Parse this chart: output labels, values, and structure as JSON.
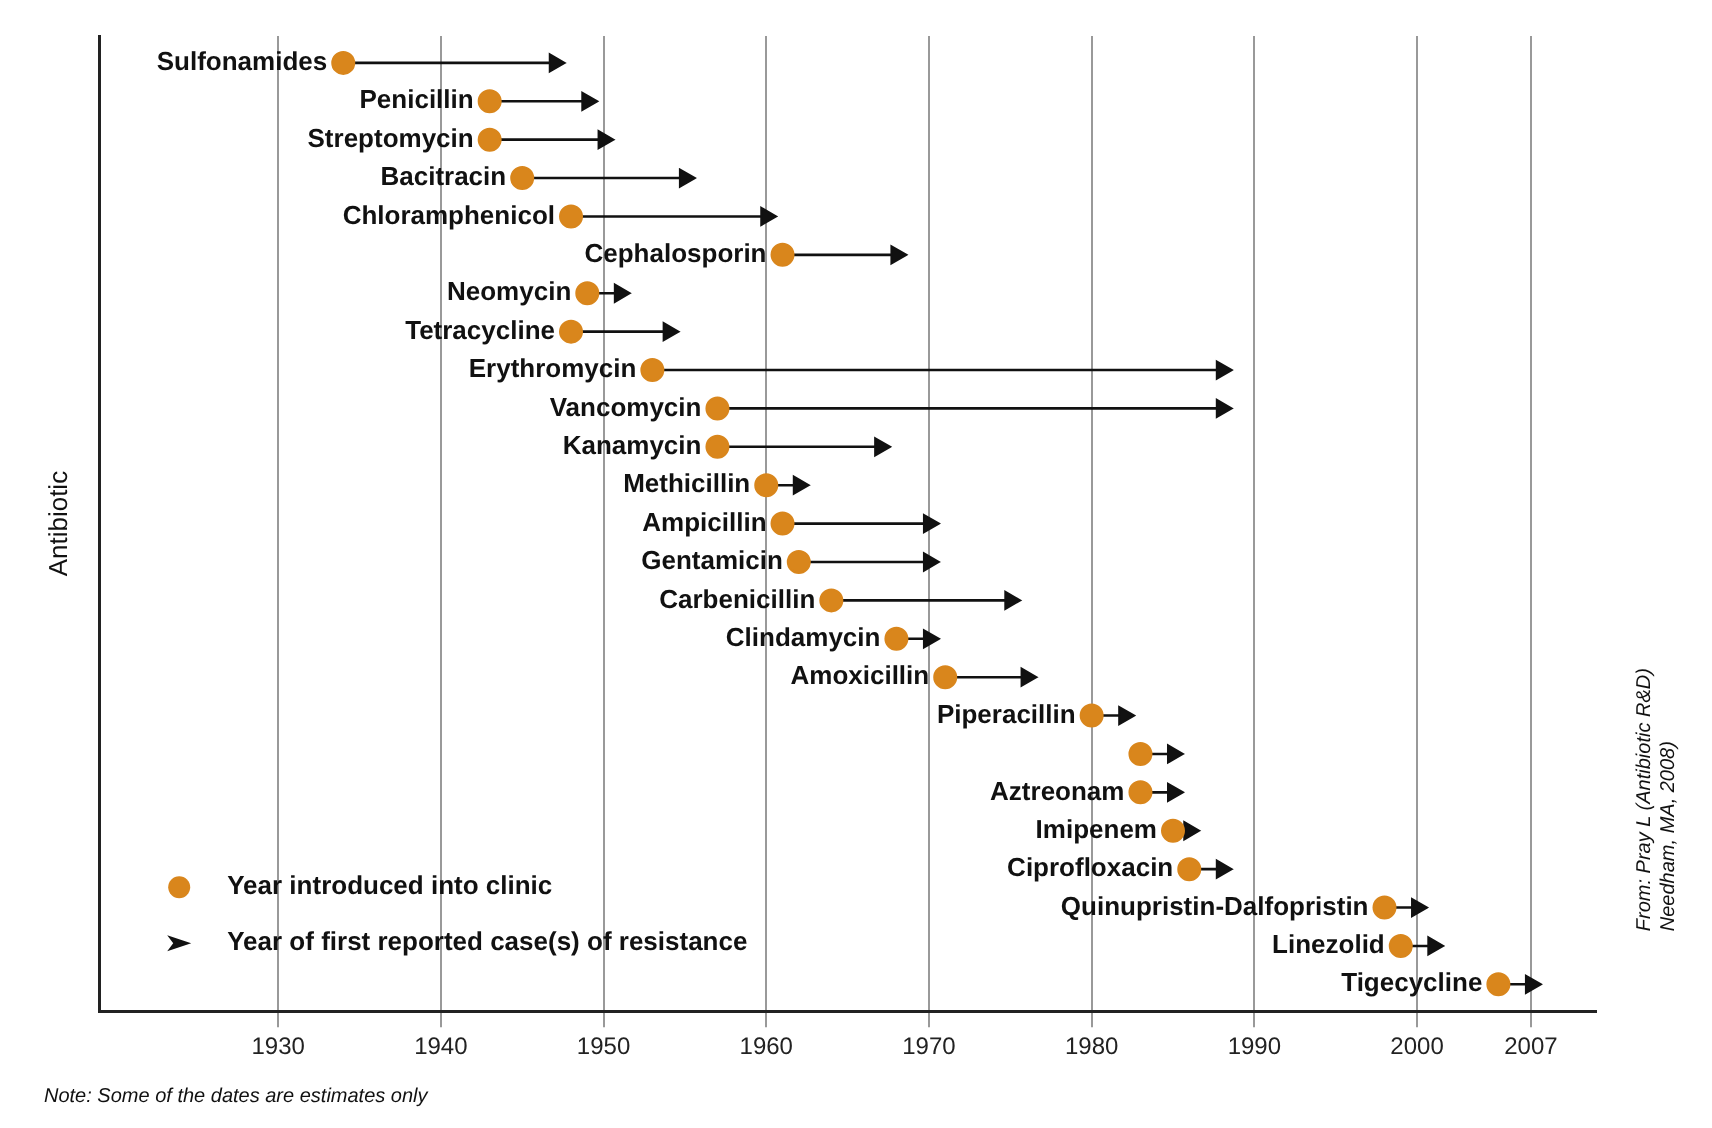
{
  "chart_data": {
    "type": "scatter",
    "orientation": "horizontal",
    "ylabel": "Antibiotic",
    "categories": [
      "Sulfonamides",
      "Penicillin",
      "Streptomycin",
      "Bacitracin",
      "Chloramphenicol",
      "Cephalosporin",
      "Neomycin",
      "Tetracycline",
      "Erythromycin",
      "Vancomycin",
      "Kanamycin",
      "Methicillin",
      "Ampicillin",
      "Gentamicin",
      "Carbenicillin",
      "Clindamycin",
      "Amoxicillin",
      "Piperacillin",
      null,
      "Aztreonam",
      "Imipenem",
      "Ciprofloxacin",
      "Quinupristin-Dalfopristin",
      "Linezolid",
      "Tigecycline"
    ],
    "series": [
      {
        "name": "Year introduced into clinic",
        "color": "#d9861c",
        "marker": "circle",
        "values": [
          1934,
          1943,
          1943,
          1945,
          1948,
          1961,
          1949,
          1948,
          1953,
          1957,
          1957,
          1960,
          1961,
          1962,
          1964,
          1968,
          1971,
          1980,
          1983,
          1983,
          1985,
          1986,
          1998,
          1999,
          2005
        ]
      },
      {
        "name": "Year of first reported case(s) of resistance",
        "color": "#111111",
        "marker": "triangle",
        "values": [
          1947,
          1949,
          1950,
          1955,
          1960,
          1968,
          1951,
          1954,
          1988,
          1988,
          1967,
          1962,
          1970,
          1970,
          1975,
          1970,
          1976,
          1982,
          1985,
          1985,
          1986,
          1988,
          2000,
          2001,
          2007
        ]
      }
    ],
    "xlim": [
      1919,
      2011
    ],
    "xticks": [
      1930,
      1940,
      1950,
      1960,
      1970,
      1980,
      1990,
      2000,
      2007
    ],
    "grid": "x",
    "legend": "bottom left",
    "annotations": [
      "Note: Some of the dates are estimates only",
      "From: Pray L (Antibiotic R&D)",
      "Needham, MA, 2008)"
    ]
  }
}
